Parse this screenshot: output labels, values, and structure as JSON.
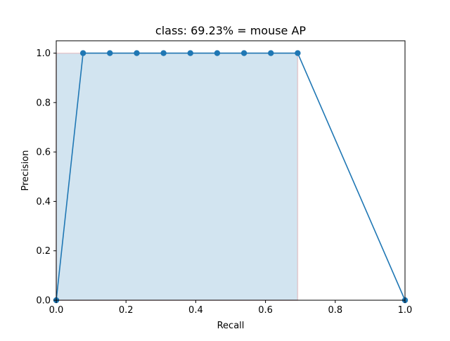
{
  "chart_data": {
    "type": "line",
    "title": "class: 69.23% = mouse AP",
    "xlabel": "Recall",
    "ylabel": "Precision",
    "xlim": [
      0.0,
      1.0
    ],
    "ylim": [
      0.0,
      1.05
    ],
    "x_ticks": [
      "0.0",
      "0.2",
      "0.4",
      "0.6",
      "0.8",
      "1.0"
    ],
    "y_ticks": [
      "0.0",
      "0.2",
      "0.4",
      "0.6",
      "0.8",
      "1.0"
    ],
    "grid": false,
    "legend": "none",
    "series": [
      {
        "x": [
          0.0,
          0.0769,
          0.1538,
          0.2308,
          0.3077,
          0.3846,
          0.4615,
          0.5385,
          0.6154,
          0.6923,
          1.0
        ],
        "y": [
          0.0,
          1.0,
          1.0,
          1.0,
          1.0,
          1.0,
          1.0,
          1.0,
          1.0,
          1.0,
          0.0
        ],
        "markers": "circle",
        "color": "#1f77b4"
      }
    ],
    "shaded_area": {
      "x": [
        0.0,
        0.6923
      ],
      "y": 1.0,
      "fill": "#1f77b4",
      "fill_alpha": 0.2,
      "edge": "#d62728",
      "edge_alpha": 0.2
    }
  }
}
